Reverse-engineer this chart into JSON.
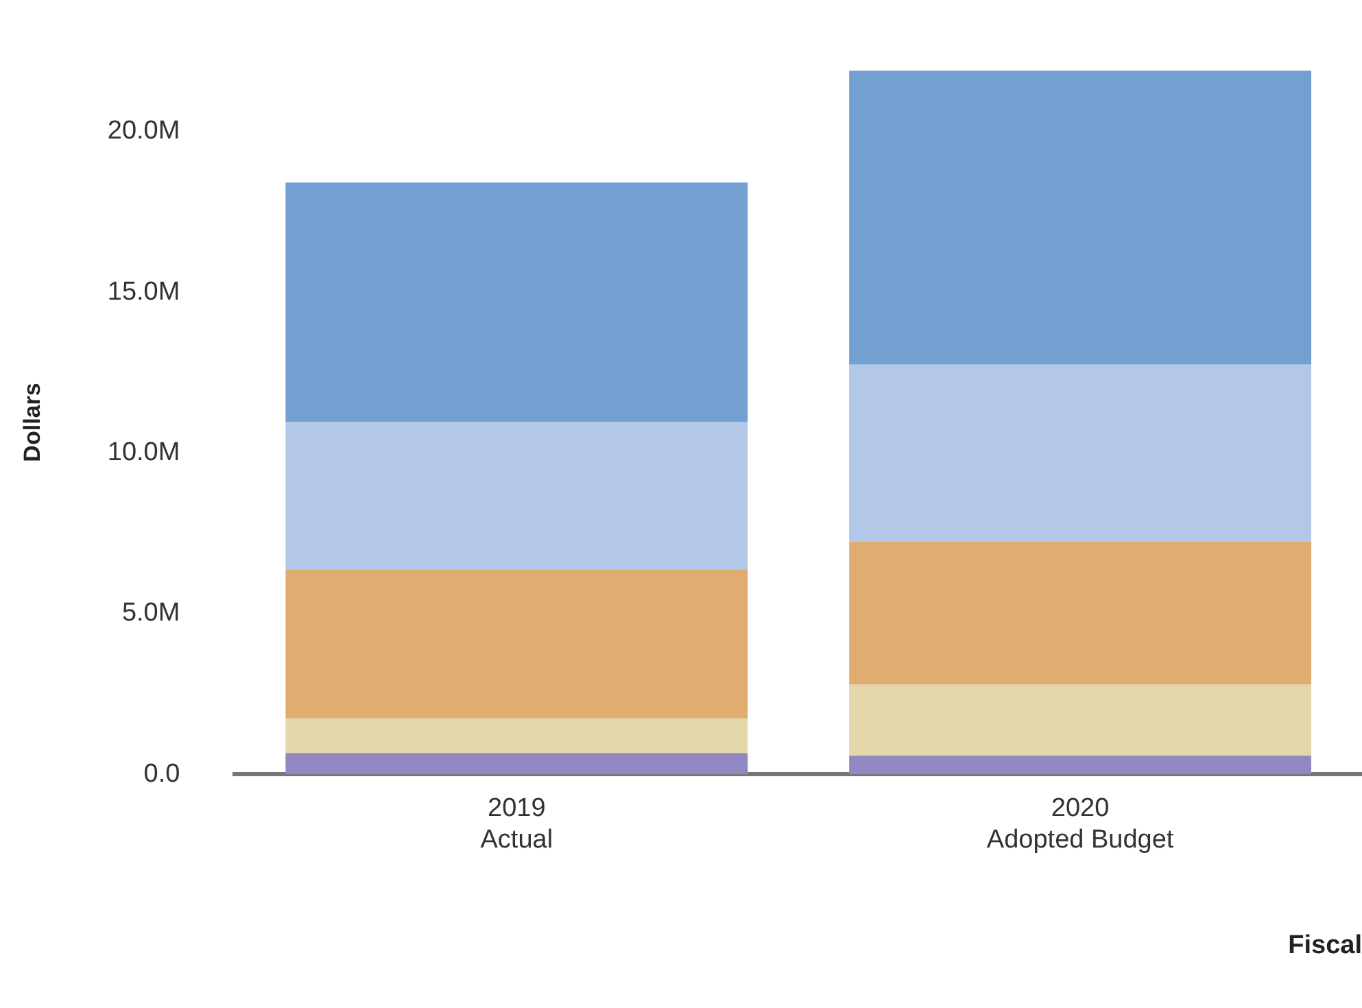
{
  "chart_data": {
    "type": "bar",
    "stacked": true,
    "xlabel": "Fiscal",
    "ylabel": "Dollars",
    "categories": [
      "2019\nActual",
      "2020\nAdopted Budget"
    ],
    "series": [
      {
        "color": "#9188c1",
        "values": [
          0.66,
          0.58
        ]
      },
      {
        "color": "#e2d6aa",
        "values": [
          1.08,
          2.21
        ]
      },
      {
        "color": "#e0ac70",
        "values": [
          4.62,
          4.46
        ]
      },
      {
        "color": "#b3c7e8",
        "values": [
          4.61,
          5.5
        ]
      },
      {
        "color": "#739fd1",
        "values": [
          7.44,
          9.15
        ]
      }
    ],
    "ylim": [
      0,
      21.9
    ],
    "yticks": [
      {
        "value": 0,
        "label": "0.0"
      },
      {
        "value": 5,
        "label": "5.0M"
      },
      {
        "value": 10,
        "label": "10.0M"
      },
      {
        "value": 15,
        "label": "15.0M"
      },
      {
        "value": 20,
        "label": "20.0M"
      }
    ],
    "grid": false,
    "legend": false
  }
}
